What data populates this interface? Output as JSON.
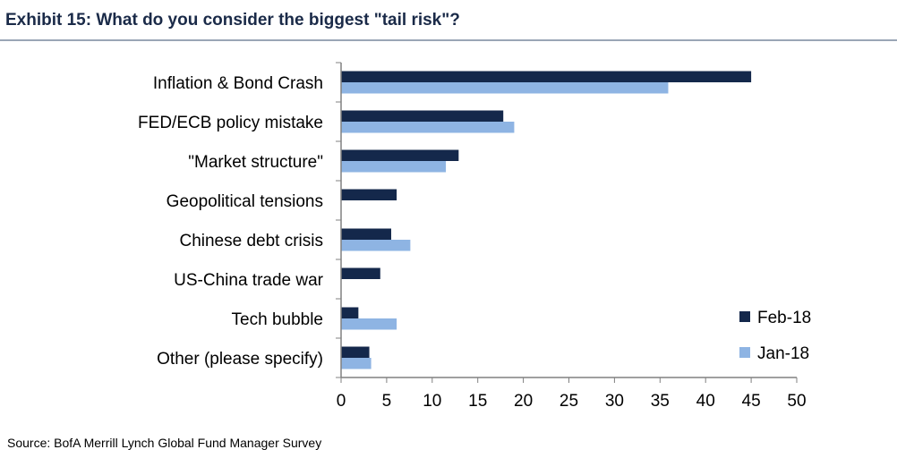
{
  "title": "Exhibit 15: What do you consider the biggest \"tail risk\"?",
  "source": "Source: BofA Merrill Lynch Global Fund Manager Survey",
  "colors": {
    "Feb-18": "#14284b",
    "Jan-18": "#8eb4e3",
    "axis": "#808080"
  },
  "chart_data": {
    "type": "bar",
    "orientation": "horizontal",
    "categories": [
      "Inflation & Bond Crash",
      "FED/ECB policy mistake",
      "\"Market structure\"",
      "Geopolitical tensions",
      "Chinese debt crisis",
      "US-China trade war",
      "Tech bubble",
      "Other (please specify)"
    ],
    "series": [
      {
        "name": "Feb-18",
        "values": [
          45,
          17.8,
          12.9,
          6.1,
          5.5,
          4.3,
          1.9,
          3.1
        ]
      },
      {
        "name": "Jan-18",
        "values": [
          35.9,
          19,
          11.5,
          null,
          7.6,
          null,
          6.1,
          3.3
        ]
      }
    ],
    "xlim": [
      0,
      50
    ],
    "xticks": [
      0,
      5,
      10,
      15,
      20,
      25,
      30,
      35,
      40,
      45,
      50
    ],
    "grid": false,
    "legend_position": "bottom-right"
  }
}
